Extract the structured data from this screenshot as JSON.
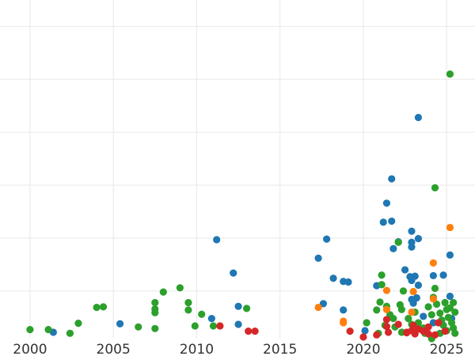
{
  "chart_data": {
    "type": "scatter",
    "title": "",
    "xlabel": "",
    "ylabel": "",
    "xlim": [
      1998.2,
      2026.7
    ],
    "ylim": [
      0,
      6.4
    ],
    "x_ticks": [
      2000,
      2005,
      2010,
      2015,
      2020,
      2025
    ],
    "x_tick_labels": [
      "2000",
      "2005",
      "2010",
      "2015",
      "2020",
      "2025"
    ],
    "y_gridlines": [
      0.9,
      1.9,
      2.9,
      3.9,
      4.9,
      5.9
    ],
    "grid": true,
    "legend": "none",
    "colors": {
      "blue": "#1f77b4",
      "green": "#2ca02c",
      "red": "#d62728",
      "orange": "#ff7f0e"
    },
    "series": [
      {
        "color": "#1f77b4",
        "points": [
          [
            2001.4,
            0.12
          ],
          [
            2005.4,
            0.28
          ],
          [
            2010.9,
            0.38
          ],
          [
            2011.2,
            1.87
          ],
          [
            2012.2,
            1.24
          ],
          [
            2012.5,
            0.61
          ],
          [
            2012.5,
            0.27
          ],
          [
            2017.3,
            1.52
          ],
          [
            2017.6,
            0.66
          ],
          [
            2017.8,
            1.88
          ],
          [
            2018.2,
            1.14
          ],
          [
            2018.8,
            1.08
          ],
          [
            2018.8,
            0.54
          ],
          [
            2019.1,
            1.07
          ],
          [
            2020.1,
            0.15
          ],
          [
            2020.8,
            1.0
          ],
          [
            2021.1,
            1.02
          ],
          [
            2021.2,
            2.2
          ],
          [
            2021.4,
            2.56
          ],
          [
            2021.7,
            2.22
          ],
          [
            2021.7,
            3.02
          ],
          [
            2021.8,
            1.7
          ],
          [
            2022.1,
            1.83
          ],
          [
            2022.5,
            1.3
          ],
          [
            2022.8,
            1.17
          ],
          [
            2022.9,
            2.03
          ],
          [
            2022.9,
            1.82
          ],
          [
            2022.9,
            1.73
          ],
          [
            2022.9,
            0.74
          ],
          [
            2022.9,
            1.1
          ],
          [
            2023.0,
            0.67
          ],
          [
            2023.1,
            1.18
          ],
          [
            2023.2,
            0.77
          ],
          [
            2023.3,
            1.01
          ],
          [
            2023.3,
            4.18
          ],
          [
            2023.3,
            1.89
          ],
          [
            2024.2,
            1.19
          ],
          [
            2024.8,
            1.2
          ],
          [
            2025.2,
            1.58
          ],
          [
            2025.2,
            0.8
          ],
          [
            2025.3,
            0.38
          ],
          [
            2023.6,
            0.42
          ],
          [
            2024.2,
            0.3
          ]
        ]
      },
      {
        "color": "#2ca02c",
        "points": [
          [
            2000.0,
            0.17
          ],
          [
            2001.1,
            0.17
          ],
          [
            2002.4,
            0.1
          ],
          [
            2002.9,
            0.29
          ],
          [
            2004.0,
            0.59
          ],
          [
            2004.4,
            0.6
          ],
          [
            2006.5,
            0.22
          ],
          [
            2007.5,
            0.68
          ],
          [
            2007.5,
            0.56
          ],
          [
            2007.5,
            0.49
          ],
          [
            2007.5,
            0.19
          ],
          [
            2008.0,
            0.88
          ],
          [
            2009.0,
            0.96
          ],
          [
            2009.5,
            0.68
          ],
          [
            2009.5,
            0.54
          ],
          [
            2009.9,
            0.24
          ],
          [
            2010.3,
            0.46
          ],
          [
            2011.0,
            0.24
          ],
          [
            2013.0,
            0.57
          ],
          [
            2020.2,
            0.3
          ],
          [
            2020.8,
            0.54
          ],
          [
            2021.0,
            0.69
          ],
          [
            2021.1,
            1.2
          ],
          [
            2021.1,
            1.02
          ],
          [
            2021.4,
            0.61
          ],
          [
            2021.6,
            0.45
          ],
          [
            2021.8,
            0.38
          ],
          [
            2021.9,
            0.22
          ],
          [
            2022.1,
            1.82
          ],
          [
            2022.2,
            0.64
          ],
          [
            2022.3,
            0.55
          ],
          [
            2022.3,
            0.12
          ],
          [
            2022.4,
            0.9
          ],
          [
            2022.7,
            0.38
          ],
          [
            2022.9,
            0.27
          ],
          [
            2023.1,
            0.5
          ],
          [
            2023.3,
            0.3
          ],
          [
            2023.6,
            0.2
          ],
          [
            2023.9,
            0.6
          ],
          [
            2024.1,
            0.45
          ],
          [
            2024.1,
            0.0
          ],
          [
            2024.2,
            0.78
          ],
          [
            2024.3,
            2.85
          ],
          [
            2024.3,
            0.95
          ],
          [
            2024.4,
            0.65
          ],
          [
            2024.6,
            0.48
          ],
          [
            2024.7,
            0.35
          ],
          [
            2024.8,
            0.25
          ],
          [
            2024.9,
            0.68
          ],
          [
            2025.0,
            0.15
          ],
          [
            2025.1,
            0.4
          ],
          [
            2025.2,
            0.58
          ],
          [
            2025.2,
            5.0
          ],
          [
            2025.3,
            0.3
          ],
          [
            2025.4,
            0.2
          ],
          [
            2025.4,
            0.68
          ],
          [
            2025.5,
            0.5
          ],
          [
            2025.5,
            0.1
          ],
          [
            2020.9,
            0.1
          ],
          [
            2021.3,
            0.25
          ],
          [
            2023.7,
            0.1
          ],
          [
            2024.6,
            0.1
          ],
          [
            2025.0,
            0.55
          ]
        ]
      },
      {
        "color": "#d62728",
        "points": [
          [
            2011.4,
            0.24
          ],
          [
            2013.1,
            0.14
          ],
          [
            2013.5,
            0.14
          ],
          [
            2019.2,
            0.14
          ],
          [
            2020.0,
            0.03
          ],
          [
            2020.8,
            0.07
          ],
          [
            2021.4,
            0.36
          ],
          [
            2021.4,
            0.23
          ],
          [
            2021.5,
            0.12
          ],
          [
            2022.1,
            0.27
          ],
          [
            2022.6,
            0.12
          ],
          [
            2022.9,
            0.15
          ],
          [
            2023.0,
            0.25
          ],
          [
            2023.1,
            0.09
          ],
          [
            2023.3,
            0.18
          ],
          [
            2023.6,
            0.14
          ],
          [
            2023.9,
            0.22
          ],
          [
            2024.3,
            0.07
          ],
          [
            2024.5,
            0.3
          ],
          [
            2024.9,
            0.14
          ],
          [
            2023.9,
            0.09
          ],
          [
            2022.6,
            0.11
          ]
        ]
      },
      {
        "color": "#ff7f0e",
        "points": [
          [
            2017.3,
            0.59
          ],
          [
            2018.8,
            0.33
          ],
          [
            2018.8,
            0.3
          ],
          [
            2021.4,
            0.91
          ],
          [
            2021.4,
            0.55
          ],
          [
            2022.9,
            0.5
          ],
          [
            2023.0,
            0.89
          ],
          [
            2024.2,
            1.43
          ],
          [
            2024.2,
            0.75
          ],
          [
            2025.2,
            2.1
          ]
        ]
      }
    ]
  }
}
